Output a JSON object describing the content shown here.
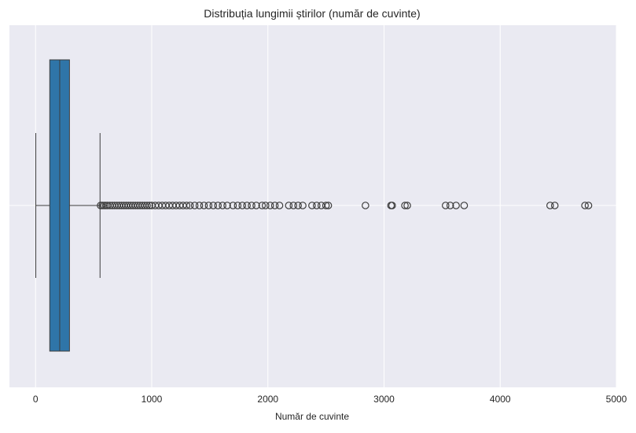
{
  "chart_data": {
    "type": "box",
    "title": "Distribuția lungimii știrilor (număr de cuvinte)",
    "xlabel": "Număr de cuvinte",
    "ylabel": "",
    "orientation": "horizontal",
    "xlim": [
      -225,
      5000
    ],
    "x_ticks": [
      0,
      1000,
      2000,
      3000,
      4000,
      5000
    ],
    "x_tick_labels": [
      "0",
      "1000",
      "2000",
      "3000",
      "4000",
      "5000"
    ],
    "grid": true,
    "colors": {
      "background": "#eaeaf2",
      "grid": "#ffffff",
      "box_fill": "#2f75a8",
      "line": "#3d3d3d"
    },
    "box": {
      "whisker_low": 2,
      "q1": 122,
      "median": 208,
      "q3": 292,
      "whisker_high": 555
    },
    "outliers": [
      560,
      575,
      590,
      605,
      620,
      640,
      660,
      680,
      700,
      720,
      740,
      760,
      780,
      800,
      820,
      840,
      860,
      880,
      900,
      920,
      940,
      960,
      980,
      1000,
      1030,
      1060,
      1090,
      1120,
      1150,
      1180,
      1210,
      1240,
      1270,
      1300,
      1330,
      1370,
      1410,
      1450,
      1490,
      1530,
      1570,
      1610,
      1650,
      1700,
      1740,
      1780,
      1820,
      1860,
      1900,
      1950,
      1980,
      2020,
      2060,
      2100,
      2180,
      2220,
      2260,
      2300,
      2380,
      2420,
      2460,
      2500,
      2520,
      2840,
      3060,
      3070,
      3180,
      3200,
      3530,
      3570,
      3620,
      3690,
      4430,
      4470,
      4730,
      4760
    ]
  }
}
